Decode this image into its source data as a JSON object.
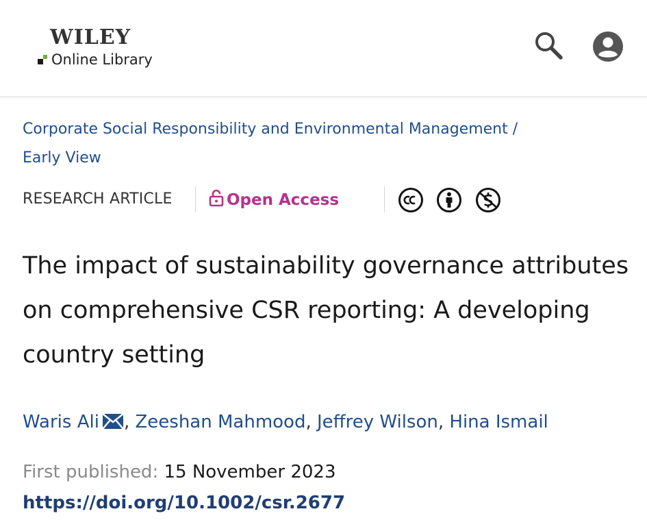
{
  "header": {
    "logo_brand": "WILEY",
    "logo_subtitle": "Online Library",
    "icons": [
      "search-icon",
      "account-icon"
    ]
  },
  "journal": {
    "name": "Corporate Social Responsibility and Environmental Management",
    "separator": "/",
    "issue": "Early View"
  },
  "meta": {
    "article_type": "RESEARCH ARTICLE",
    "access_label": "Open Access",
    "access_color": "#b5328c",
    "license_icons": [
      "cc-icon",
      "attribution-icon",
      "noncommercial-icon"
    ]
  },
  "article": {
    "title": "The impact of sustainability governance attributes on comprehensive CSR reporting: A developing country setting",
    "authors": [
      "Waris Ali",
      "Zeeshan Mahmood",
      "Jeffrey Wilson",
      "Hina Ismail"
    ],
    "author_separator": ", ",
    "published_label": "First published:",
    "published_date": "15 November 2023",
    "doi": "https://doi.org/10.1002/csr.2677"
  },
  "colors": {
    "link": "#1f4e8c",
    "doi": "#1f3f73",
    "logo_green": "#6ab43e"
  }
}
